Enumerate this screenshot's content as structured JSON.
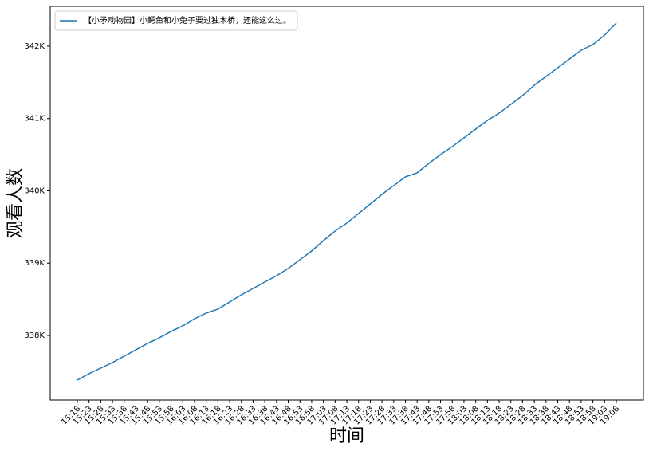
{
  "chart_data": {
    "type": "line",
    "xlabel": "时间",
    "ylabel": "观看人数",
    "categories": [
      "15:18",
      "15:23",
      "15:28",
      "15:33",
      "15:38",
      "15:43",
      "15:48",
      "15:53",
      "15:58",
      "16:03",
      "16:08",
      "16:13",
      "16:18",
      "16:23",
      "16:28",
      "16:33",
      "16:38",
      "16:43",
      "16:48",
      "16:53",
      "16:58",
      "17:03",
      "17:08",
      "17:13",
      "17:18",
      "17:23",
      "17:28",
      "17:33",
      "17:38",
      "17:43",
      "17:48",
      "17:53",
      "17:58",
      "18:03",
      "18:08",
      "18:13",
      "18:18",
      "18:23",
      "18:28",
      "18:33",
      "18:38",
      "18:43",
      "18:48",
      "18:53",
      "18:58",
      "19:03",
      "19:08"
    ],
    "series": [
      {
        "name": "【小矛动物园】小鳄鱼和小兔子要过独木桥，还能这么过。",
        "color": "#1f77b4",
        "values": [
          337383,
          337471,
          337548,
          337625,
          337713,
          337802,
          337890,
          337967,
          338055,
          338132,
          338231,
          338309,
          338364,
          338463,
          338562,
          338650,
          338738,
          338826,
          338926,
          339047,
          339168,
          339311,
          339444,
          339554,
          339686,
          339818,
          339950,
          340072,
          340193,
          340248,
          340380,
          340501,
          340612,
          340733,
          340854,
          340975,
          341074,
          341196,
          341317,
          341460,
          341581,
          341702,
          341824,
          341945,
          342022,
          342154,
          342320
        ]
      }
    ],
    "ylim": [
      337107,
      342551
    ],
    "yticks": [
      {
        "value": 338000,
        "label": "338K"
      },
      {
        "value": 339000,
        "label": "339K"
      },
      {
        "value": 340000,
        "label": "340K"
      },
      {
        "value": 341000,
        "label": "341K"
      },
      {
        "value": 342000,
        "label": "342K"
      }
    ],
    "grid": false,
    "legend": "upper left"
  }
}
